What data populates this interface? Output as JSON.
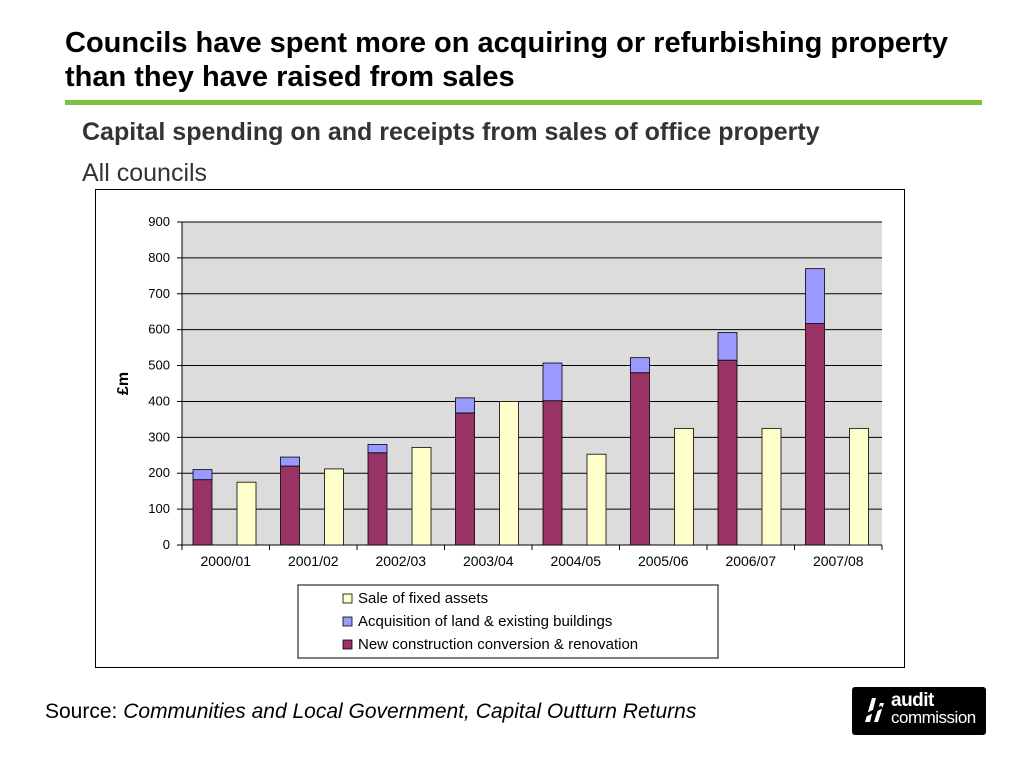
{
  "slide": {
    "title": "Councils have spent more on acquiring or refurbishing property than they have raised from sales",
    "accent_color": "#7dc242"
  },
  "chart_data": {
    "type": "bar",
    "title": "Capital spending on and receipts from sales of office property",
    "subtitle": "All councils",
    "ylabel": "£m",
    "xlabel": "",
    "ylim": [
      0,
      900
    ],
    "yticks": [
      0,
      100,
      200,
      300,
      400,
      500,
      600,
      700,
      800,
      900
    ],
    "grid": true,
    "legend_position": "bottom",
    "categories": [
      "2000/01",
      "2001/02",
      "2002/03",
      "2003/04",
      "2004/05",
      "2005/06",
      "2006/07",
      "2007/08"
    ],
    "series": [
      {
        "name": "Sale of fixed assets",
        "color": "#ffffcc",
        "stack": "receipts",
        "values": [
          175,
          212,
          272,
          400,
          253,
          325,
          325,
          325
        ]
      },
      {
        "name": "Acquisition of land & existing buildings",
        "color": "#9999ff",
        "stack": "spending",
        "values": [
          28,
          25,
          23,
          42,
          105,
          42,
          77,
          153
        ]
      },
      {
        "name": "New construction conversion & renovation",
        "color": "#993366",
        "stack": "spending",
        "values": [
          182,
          220,
          257,
          368,
          402,
          480,
          515,
          617
        ]
      }
    ],
    "legend_order": [
      0,
      1,
      2
    ]
  },
  "footer": {
    "source_label": "Source:",
    "source_text": "Communities and Local Government, Capital Outturn Returns"
  },
  "logo": {
    "line1": "audit",
    "line2": "commission",
    "icon": "audit-commission-logo-icon"
  }
}
